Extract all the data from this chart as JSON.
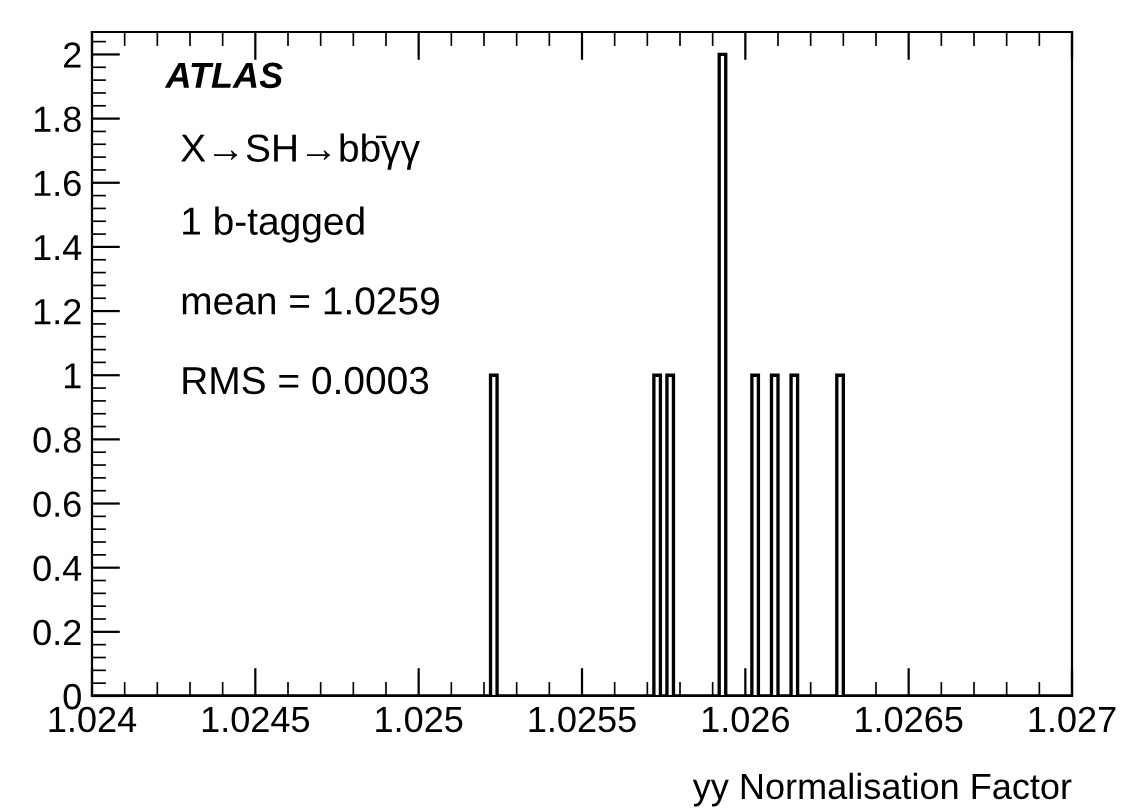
{
  "chart_data": {
    "type": "histogram",
    "xlabel": "yy Normalisation Factor",
    "annotations": [
      "ATLAS",
      "X→SH→bb̄γγ",
      "1 b-tagged",
      "mean = 1.0259",
      "RMS = 0.0003"
    ],
    "bins": [
      1.024,
      1.02522,
      1.02524,
      1.02572,
      1.02574,
      1.02576,
      1.02578,
      1.02592,
      1.02594,
      1.02602,
      1.02604,
      1.02608,
      1.0261,
      1.02614,
      1.02616,
      1.02628,
      1.0263,
      1.027
    ],
    "values": [
      0,
      1,
      0,
      1,
      0,
      1,
      0,
      2,
      0,
      1,
      0,
      1,
      0,
      1,
      0,
      1,
      0
    ],
    "color": "#000000",
    "xlim": [
      1.024,
      1.027
    ],
    "xticks": [
      1.024,
      1.0245,
      1.025,
      1.0255,
      1.026,
      1.0265,
      1.027
    ],
    "ylim": [
      0,
      2.07
    ],
    "yticks": [
      0,
      0.2,
      0.4,
      0.6,
      0.8,
      1,
      1.2,
      1.4,
      1.6,
      1.8,
      2
    ],
    "grid": false,
    "legend": false
  }
}
